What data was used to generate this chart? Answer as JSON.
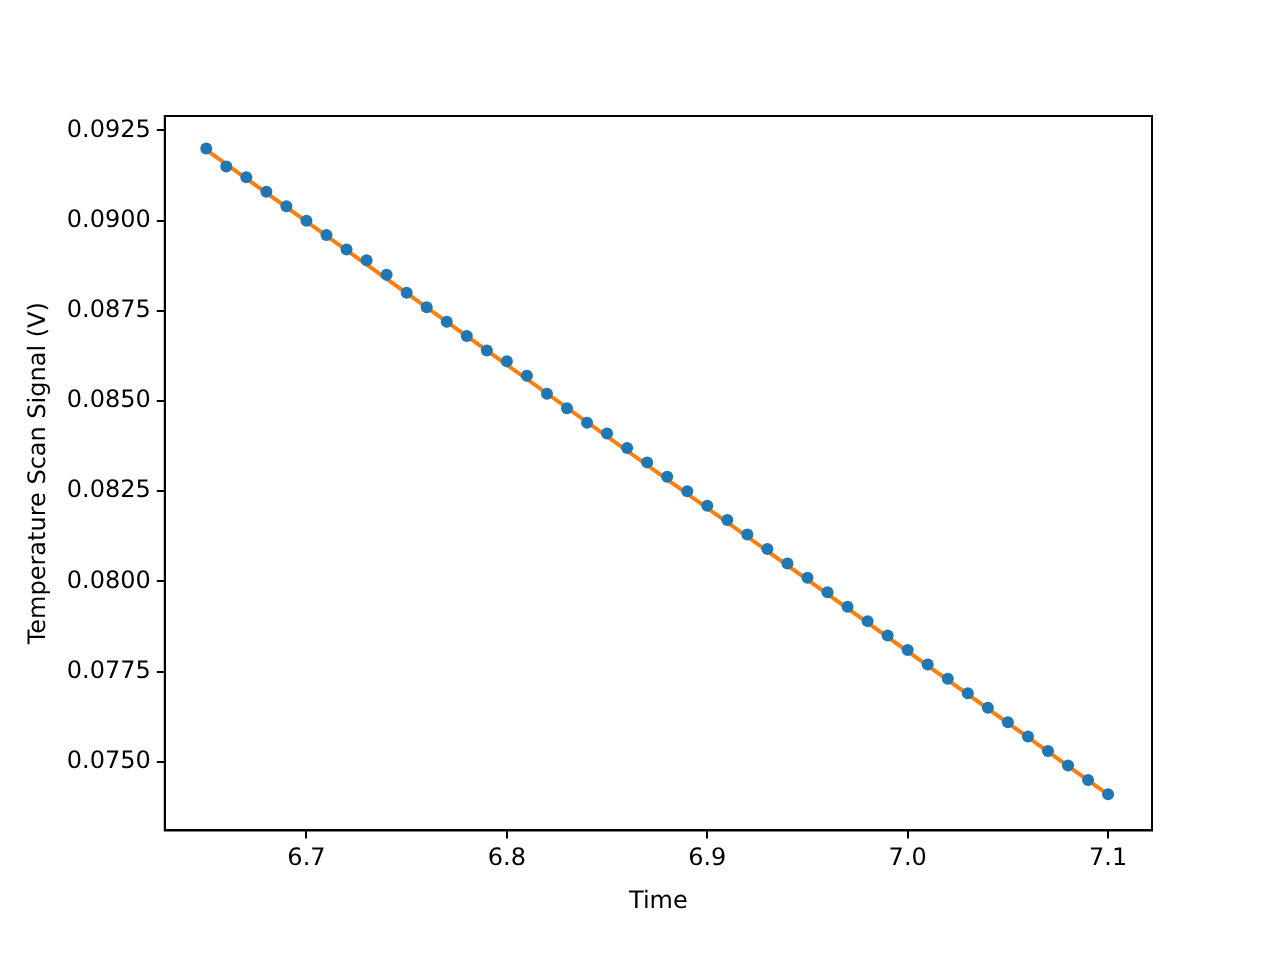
{
  "chart_data": {
    "type": "scatter",
    "xlabel": "Time",
    "ylabel": "Temperature Scan Signal (V)",
    "xlim": [
      6.6293,
      7.1219
    ],
    "ylim": [
      0.0731,
      0.0929
    ],
    "xticks": [
      6.7,
      6.8,
      6.9,
      {
        "value": 7,
        "label": "7.0"
      },
      7.1
    ],
    "yticks": [
      {
        "value": 0.075,
        "label": "0.0750"
      },
      {
        "value": 0.0775,
        "label": "0.0775"
      },
      {
        "value": 0.08,
        "label": "0.0800"
      },
      {
        "value": 0.0825,
        "label": "0.0825"
      },
      {
        "value": 0.085,
        "label": "0.0850"
      },
      {
        "value": 0.0875,
        "label": "0.0875"
      },
      {
        "value": 0.09,
        "label": "0.0900"
      },
      {
        "value": 0.0925,
        "label": "0.0925"
      }
    ],
    "grid": false,
    "legend": false,
    "marker": "circle",
    "series": [
      {
        "color": "#1f77b4",
        "x": [
          6.65,
          6.66,
          6.67,
          6.68,
          6.69,
          6.7,
          6.71,
          6.72,
          6.73,
          6.74,
          6.75,
          6.76,
          6.77,
          6.78,
          6.79,
          6.8,
          6.81,
          6.82,
          6.83,
          6.84,
          6.85,
          6.86,
          6.87,
          6.88,
          6.89,
          6.9,
          6.91,
          6.92,
          6.93,
          6.94,
          6.95,
          6.96,
          6.97,
          6.98,
          6.99,
          7.0,
          7.01,
          7.02,
          7.03,
          7.04,
          7.05,
          7.06,
          7.07,
          7.08,
          7.09,
          7.1
        ],
        "values": [
          0.092,
          0.0915,
          0.0912,
          0.0908,
          0.0904,
          0.09,
          0.0896,
          0.0892,
          0.0889,
          0.0885,
          0.088,
          0.0876,
          0.0872,
          0.0868,
          0.0864,
          0.0861,
          0.0857,
          0.0852,
          0.0848,
          0.0844,
          0.0841,
          0.0837,
          0.0833,
          0.0829,
          0.0825,
          0.0821,
          0.0817,
          0.0813,
          0.0809,
          0.0805,
          0.0801,
          0.0797,
          0.0793,
          0.0789,
          0.0785,
          0.0781,
          0.0777,
          0.0773,
          0.0769,
          0.0765,
          0.0761,
          0.0757,
          0.0753,
          0.0749,
          0.0745,
          0.0741
        ]
      },
      {
        "type": "line",
        "color": "#ff7f0e",
        "x": [
          6.65,
          7.1
        ],
        "values": [
          0.09196,
          0.07409
        ],
        "marker": "none"
      }
    ]
  }
}
